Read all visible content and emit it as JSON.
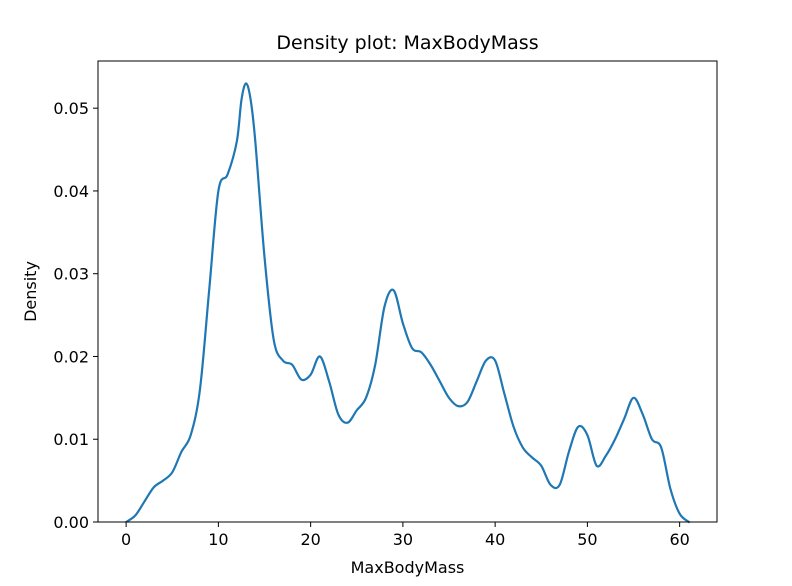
{
  "chart_data": {
    "type": "line",
    "title": "Density plot: MaxBodyMass",
    "xlabel": "MaxBodyMass",
    "ylabel": "Density",
    "xlim": [
      -3.05,
      64.05
    ],
    "ylim": [
      0,
      0.0557
    ],
    "xticks": [
      0,
      10,
      20,
      30,
      40,
      50,
      60
    ],
    "xtick_labels": [
      "0",
      "10",
      "20",
      "30",
      "40",
      "50",
      "60"
    ],
    "yticks": [
      0,
      0.01,
      0.02,
      0.03,
      0.04,
      0.05
    ],
    "ytick_labels": [
      "0.00",
      "0.01",
      "0.02",
      "0.03",
      "0.04",
      "0.05"
    ],
    "grid": false,
    "series": [
      {
        "color": "#1f77b4",
        "x": [
          0,
          1,
          2,
          3,
          4,
          5,
          6,
          7,
          8,
          9,
          10,
          11,
          12,
          12.5,
          13,
          13.5,
          14,
          15,
          16,
          17,
          18,
          19,
          20,
          21,
          22,
          23,
          24,
          25,
          26,
          27,
          28,
          29,
          30,
          31,
          32,
          33,
          34,
          35,
          36,
          37,
          38,
          39,
          40,
          41,
          42,
          43,
          44,
          45,
          46,
          47,
          48,
          49,
          50,
          51,
          52,
          53,
          54,
          55,
          56,
          57,
          58,
          59,
          60,
          61
        ],
        "y": [
          0.0,
          0.0008,
          0.0025,
          0.0042,
          0.005,
          0.006,
          0.0085,
          0.0105,
          0.016,
          0.028,
          0.04,
          0.042,
          0.046,
          0.051,
          0.053,
          0.051,
          0.046,
          0.032,
          0.022,
          0.0195,
          0.019,
          0.0172,
          0.0178,
          0.02,
          0.017,
          0.013,
          0.012,
          0.0135,
          0.015,
          0.019,
          0.026,
          0.028,
          0.024,
          0.021,
          0.0205,
          0.019,
          0.017,
          0.015,
          0.014,
          0.0145,
          0.017,
          0.0195,
          0.0195,
          0.0155,
          0.0115,
          0.009,
          0.0078,
          0.0068,
          0.0045,
          0.0045,
          0.0085,
          0.0115,
          0.0105,
          0.0068,
          0.008,
          0.01,
          0.0125,
          0.015,
          0.013,
          0.01,
          0.009,
          0.004,
          0.001,
          0.0
        ]
      }
    ]
  }
}
